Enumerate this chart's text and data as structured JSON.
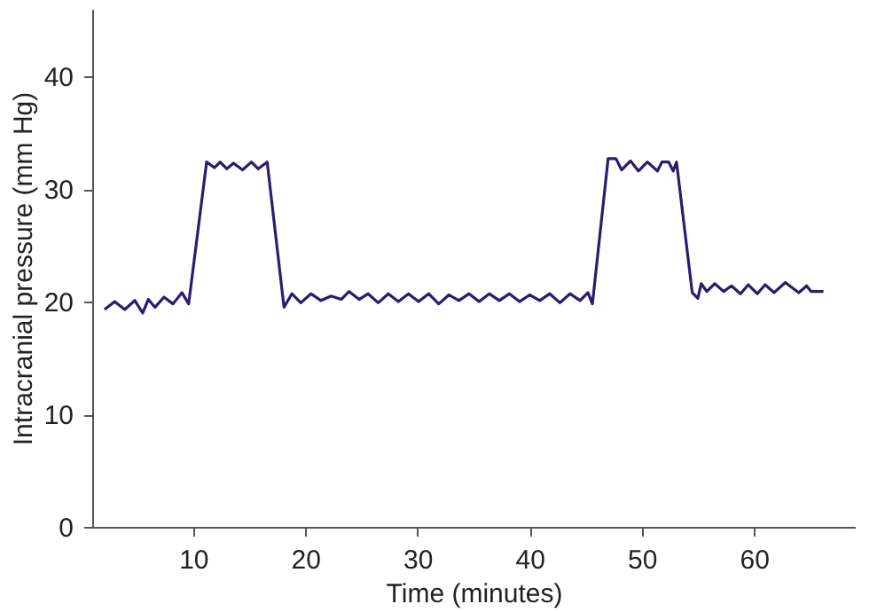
{
  "chart_data": {
    "type": "line",
    "xlabel": "Time (minutes)",
    "ylabel": "Intracranial pressure (mm Hg)",
    "x": [
      2.1,
      3,
      3.9,
      4.8,
      5.5,
      6,
      6.6,
      7.4,
      8.2,
      9,
      9.6,
      11.2,
      11.9,
      12.4,
      13,
      13.6,
      14.4,
      15.2,
      15.8,
      16.6,
      18.1,
      18.8,
      19.6,
      20.5,
      21.4,
      22.3,
      23.2,
      23.9,
      24.8,
      25.6,
      26.5,
      27.4,
      28.3,
      29.2,
      30.1,
      31,
      31.9,
      32.8,
      33.7,
      34.6,
      35.5,
      36.4,
      37.3,
      38.2,
      39.1,
      40,
      40.9,
      41.8,
      42.7,
      43.6,
      44.5,
      45.2,
      45.6,
      47,
      47.7,
      48.2,
      49,
      49.7,
      50.5,
      51.4,
      51.8,
      52.4,
      52.8,
      53.1,
      54.5,
      55,
      55.3,
      55.8,
      56.5,
      57.3,
      58,
      58.8,
      59.5,
      60.3,
      61,
      61.8,
      62.8,
      64,
      64.7,
      65.1,
      66.2
    ],
    "series": [
      {
        "color": "#2e1a6e",
        "values": [
          19.3,
          20,
          19.3,
          20.1,
          19,
          20.2,
          19.5,
          20.4,
          19.8,
          20.8,
          19.8,
          32.4,
          31.9,
          32.4,
          31.8,
          32.3,
          31.7,
          32.4,
          31.8,
          32.4,
          19.5,
          20.7,
          19.9,
          20.7,
          20.1,
          20.5,
          20.2,
          20.9,
          20.2,
          20.7,
          19.9,
          20.7,
          20,
          20.7,
          20,
          20.7,
          19.8,
          20.6,
          20.1,
          20.7,
          20,
          20.7,
          20.1,
          20.7,
          20,
          20.6,
          20.1,
          20.7,
          19.9,
          20.7,
          20.1,
          20.8,
          19.8,
          32.7,
          32.7,
          31.7,
          32.5,
          31.6,
          32.4,
          31.6,
          32.4,
          32.4,
          31.6,
          32.4,
          20.8,
          20.3,
          21.6,
          20.9,
          21.6,
          20.9,
          21.4,
          20.7,
          21.5,
          20.7,
          21.5,
          20.8,
          21.7,
          20.8,
          21.4,
          20.9,
          20.9
        ]
      }
    ],
    "xlim": [
      1,
      69
    ],
    "xticks": [
      10,
      20,
      30,
      40,
      50,
      60
    ],
    "ylim": [
      0,
      46
    ],
    "yticks": [
      0,
      10,
      20,
      30,
      40
    ],
    "marker": "none",
    "line_style": "solid"
  }
}
